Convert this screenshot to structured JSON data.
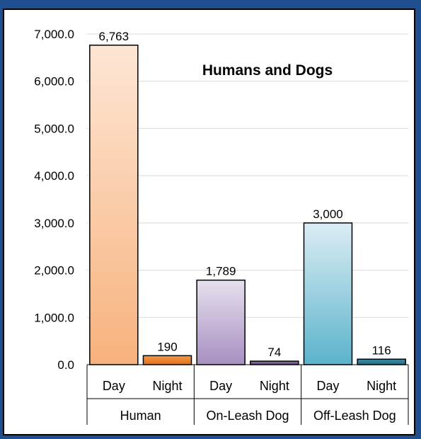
{
  "chart_data": {
    "type": "bar",
    "title": "Humans and Dogs",
    "xlabel": "",
    "ylabel": "",
    "ylim": [
      0,
      7000
    ],
    "yticks": [
      "0.0",
      "1,000.0",
      "2,000.0",
      "3,000.0",
      "4,000.0",
      "5,000.0",
      "6,000.0",
      "7,000.0"
    ],
    "grid": true,
    "legend": "none",
    "groups": [
      {
        "name": "Human",
        "bars": [
          {
            "label": "Day",
            "value": 6763,
            "display": "6,763",
            "color_top": "#fde6d4",
            "color_bottom": "#f7b27d"
          },
          {
            "label": "Night",
            "value": 190,
            "display": "190",
            "color_top": "#f59a4c",
            "color_bottom": "#e06f17"
          }
        ]
      },
      {
        "name": "On-Leash Dog",
        "bars": [
          {
            "label": "Day",
            "value": 1789,
            "display": "1,789",
            "color_top": "#e6e0ee",
            "color_bottom": "#a78fc2"
          },
          {
            "label": "Night",
            "value": 74,
            "display": "74",
            "color_top": "#8c74ab",
            "color_bottom": "#5d4680"
          }
        ]
      },
      {
        "name": "Off-Leash Dog",
        "bars": [
          {
            "label": "Day",
            "value": 3000,
            "display": "3,000",
            "color_top": "#dcedf4",
            "color_bottom": "#5bb3cb"
          },
          {
            "label": "Night",
            "value": 116,
            "display": "116",
            "color_top": "#3c8ea8",
            "color_bottom": "#236e86"
          }
        ]
      }
    ]
  }
}
